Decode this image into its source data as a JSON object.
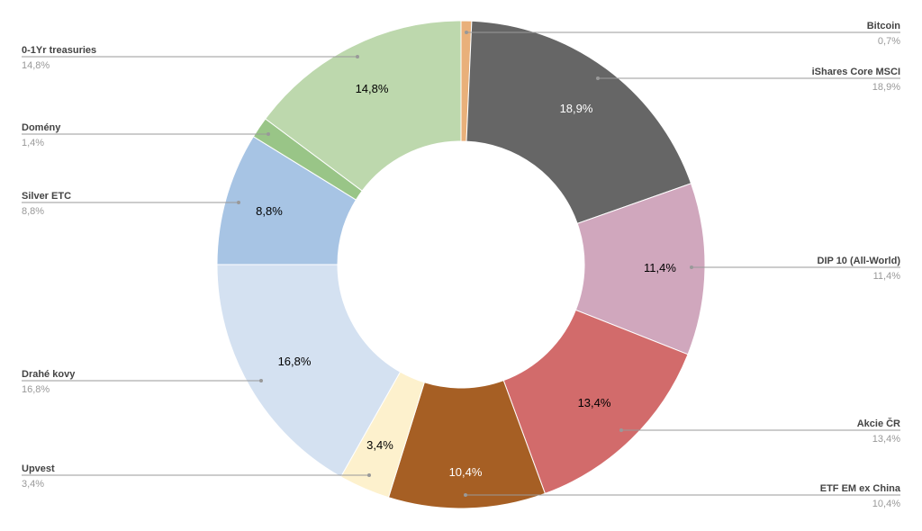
{
  "chart_data": {
    "type": "pie",
    "donut": true,
    "title": "",
    "slices": [
      {
        "label": "Bitcoin",
        "value": 0.7,
        "display": "0,7%",
        "color": "#e9b07a"
      },
      {
        "label": "iShares Core MSCI",
        "value": 18.9,
        "display": "18,9%",
        "color": "#666666"
      },
      {
        "label": "DIP 10 (All-World)",
        "value": 11.4,
        "display": "11,4%",
        "color": "#d0a7bd"
      },
      {
        "label": "Akcie ČR",
        "value": 13.4,
        "display": "13,4%",
        "color": "#d26b6b"
      },
      {
        "label": "ETF EM ex China",
        "value": 10.4,
        "display": "10,4%",
        "color": "#a65f24"
      },
      {
        "label": "Upvest",
        "value": 3.4,
        "display": "3,4%",
        "color": "#fdf1cd"
      },
      {
        "label": "Drahé kovy",
        "value": 16.8,
        "display": "16,8%",
        "color": "#d4e1f1"
      },
      {
        "label": "Silver ETC",
        "value": 8.8,
        "display": "8,8%",
        "color": "#a7c4e4"
      },
      {
        "label": "Domény",
        "value": 1.4,
        "display": "1,4%",
        "color": "#99c587"
      },
      {
        "label": "0-1Yr treasuries",
        "value": 14.8,
        "display": "14,8%",
        "color": "#bdd8ad"
      }
    ],
    "legend": "leader-labels"
  }
}
